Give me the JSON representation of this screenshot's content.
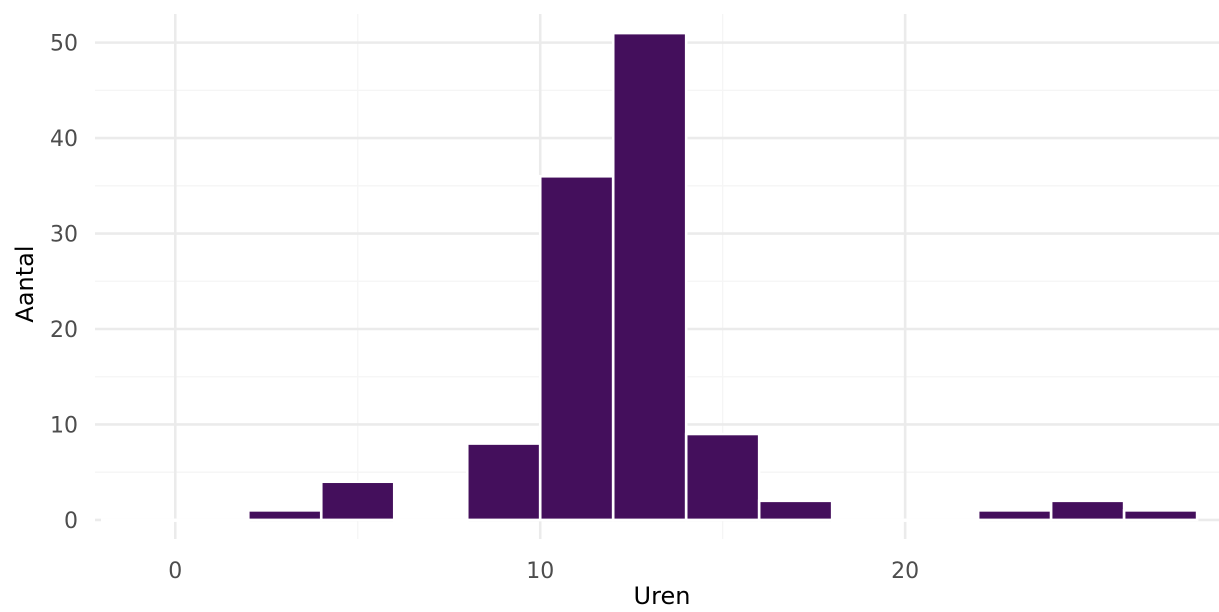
{
  "chart_data": {
    "type": "bar",
    "subtype": "histogram",
    "xlabel": "Uren",
    "ylabel": "Aantal",
    "bin_width": 2,
    "bins": [
      {
        "x0": -2,
        "x1": 0,
        "count": 0
      },
      {
        "x0": 0,
        "x1": 2,
        "count": 0
      },
      {
        "x0": 2,
        "x1": 4,
        "count": 1
      },
      {
        "x0": 4,
        "x1": 6,
        "count": 4
      },
      {
        "x0": 6,
        "x1": 8,
        "count": 0
      },
      {
        "x0": 8,
        "x1": 10,
        "count": 8
      },
      {
        "x0": 10,
        "x1": 12,
        "count": 36
      },
      {
        "x0": 12,
        "x1": 14,
        "count": 51
      },
      {
        "x0": 14,
        "x1": 16,
        "count": 9
      },
      {
        "x0": 16,
        "x1": 18,
        "count": 2
      },
      {
        "x0": 18,
        "x1": 20,
        "count": 0
      },
      {
        "x0": 20,
        "x1": 22,
        "count": 0
      },
      {
        "x0": 22,
        "x1": 24,
        "count": 1
      },
      {
        "x0": 24,
        "x1": 26,
        "count": 2
      },
      {
        "x0": 26,
        "x1": 28,
        "count": 1
      }
    ],
    "xlim": [
      -2.2,
      28.6
    ],
    "ylim": [
      -2,
      53
    ],
    "x_ticks": [
      0,
      10,
      20
    ],
    "y_ticks": [
      0,
      10,
      20,
      30,
      40,
      50
    ],
    "bar_color": "#440f5c",
    "bar_edge_color": "#ffffff",
    "grid": true,
    "legend": "none"
  }
}
